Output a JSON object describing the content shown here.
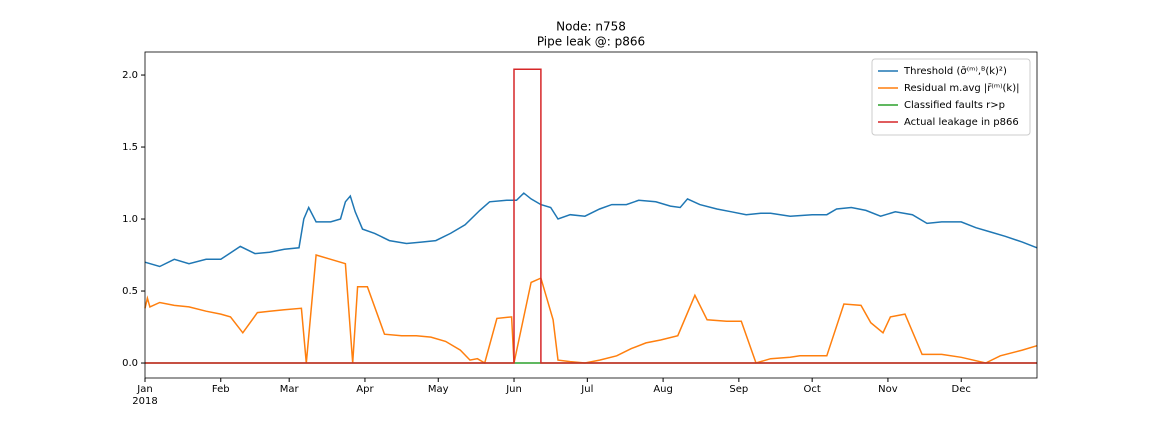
{
  "chart_data": {
    "type": "line",
    "title": "Node: n758",
    "subtitle": "Pipe leak @: p866",
    "xlim": [
      0,
      365
    ],
    "xticks": [
      {
        "value": 0,
        "label": "Jan"
      },
      {
        "value": 31,
        "label": "Feb"
      },
      {
        "value": 59,
        "label": "Mar"
      },
      {
        "value": 90,
        "label": "Apr"
      },
      {
        "value": 120,
        "label": "May"
      },
      {
        "value": 151,
        "label": "Jun"
      },
      {
        "value": 181,
        "label": "Jul"
      },
      {
        "value": 212,
        "label": "Aug"
      },
      {
        "value": 243,
        "label": "Sep"
      },
      {
        "value": 273,
        "label": "Oct"
      },
      {
        "value": 304,
        "label": "Nov"
      },
      {
        "value": 334,
        "label": "Dec"
      }
    ],
    "xtick_year": "2018",
    "ylim": [
      -0.104,
      2.16
    ],
    "yticks": [
      {
        "value": 0,
        "label": "0.0"
      },
      {
        "value": 0.5,
        "label": "0.5"
      },
      {
        "value": 1,
        "label": "1.0"
      },
      {
        "value": 1.5,
        "label": "1.5"
      },
      {
        "value": 2,
        "label": "2.0"
      }
    ],
    "legend": "upper right",
    "series": [
      {
        "name": "Threshold (σ̄⁽ᵐ⁾,ᴮ(k)²)",
        "color": "#1f77b4",
        "x": [
          0,
          6,
          12,
          18,
          25,
          31,
          39,
          45,
          51,
          57,
          63,
          65,
          67,
          70,
          76,
          80,
          82,
          84,
          86,
          89,
          94,
          100,
          107,
          113,
          119,
          125,
          131,
          137,
          141,
          148,
          152,
          155,
          158,
          162,
          166,
          169,
          174,
          180,
          186,
          191,
          197,
          202,
          209,
          215,
          219,
          222,
          227,
          234,
          240,
          246,
          252,
          256,
          264,
          273,
          279,
          283,
          289,
          295,
          301,
          307,
          314,
          320,
          326,
          334,
          340,
          346,
          352,
          359,
          365
        ],
        "values": [
          0.7,
          0.67,
          0.72,
          0.69,
          0.72,
          0.72,
          0.81,
          0.76,
          0.77,
          0.79,
          0.8,
          1.0,
          1.08,
          0.98,
          0.98,
          1.0,
          1.12,
          1.16,
          1.05,
          0.93,
          0.9,
          0.85,
          0.83,
          0.84,
          0.85,
          0.9,
          0.96,
          1.06,
          1.12,
          1.13,
          1.13,
          1.18,
          1.14,
          1.1,
          1.08,
          1.0,
          1.03,
          1.02,
          1.07,
          1.1,
          1.1,
          1.13,
          1.12,
          1.09,
          1.08,
          1.14,
          1.1,
          1.07,
          1.05,
          1.03,
          1.04,
          1.04,
          1.02,
          1.03,
          1.03,
          1.07,
          1.08,
          1.06,
          1.02,
          1.05,
          1.03,
          0.97,
          0.98,
          0.98,
          0.94,
          0.91,
          0.88,
          0.84,
          0.8
        ]
      },
      {
        "name": "Residual m.avg |r̄⁽ᵐ⁾(k)|",
        "color": "#ff7f0e",
        "x": [
          0,
          1,
          2,
          6,
          12,
          18,
          25,
          31,
          35,
          40,
          46,
          51,
          57,
          64,
          66,
          70,
          76,
          82,
          85,
          87,
          91,
          98,
          105,
          111,
          117,
          123,
          129,
          133,
          136,
          139,
          144,
          150,
          151,
          158,
          162,
          167,
          169,
          174,
          180,
          186,
          193,
          199,
          205,
          211,
          218,
          225,
          230,
          238,
          244,
          250,
          256,
          264,
          268,
          279,
          286,
          293,
          297,
          302,
          305,
          311,
          318,
          326,
          334,
          344,
          350,
          359,
          365
        ],
        "values": [
          0.38,
          0.45,
          0.39,
          0.42,
          0.4,
          0.39,
          0.36,
          0.34,
          0.32,
          0.21,
          0.35,
          0.36,
          0.37,
          0.38,
          0.0,
          0.75,
          0.72,
          0.69,
          0.0,
          0.53,
          0.53,
          0.2,
          0.19,
          0.19,
          0.18,
          0.15,
          0.09,
          0.02,
          0.03,
          0.0,
          0.31,
          0.32,
          0.0,
          0.56,
          0.59,
          0.3,
          0.02,
          0.01,
          0.0,
          0.02,
          0.05,
          0.1,
          0.14,
          0.16,
          0.19,
          0.47,
          0.3,
          0.29,
          0.29,
          0.0,
          0.03,
          0.04,
          0.05,
          0.05,
          0.41,
          0.4,
          0.28,
          0.21,
          0.32,
          0.34,
          0.06,
          0.06,
          0.04,
          0.0,
          0.05,
          0.09,
          0.12
        ]
      },
      {
        "name": "Classified faults r>p",
        "color": "#2ca02c",
        "x": [
          0,
          365
        ],
        "values": [
          0,
          0
        ]
      },
      {
        "name": "Actual leakage in p866",
        "color": "#d62728",
        "x": [
          0,
          151,
          151,
          162,
          162,
          365
        ],
        "values": [
          0,
          0,
          2.04,
          2.04,
          0,
          0
        ]
      }
    ]
  }
}
